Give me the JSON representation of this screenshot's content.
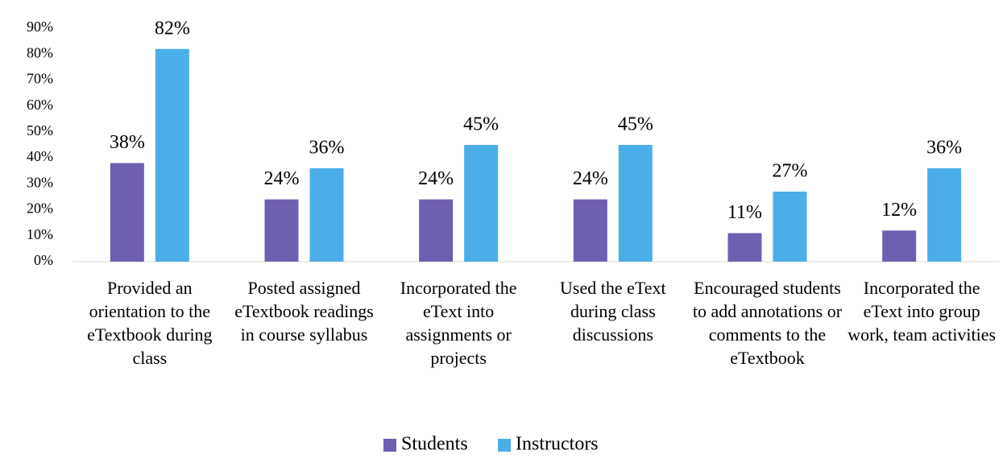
{
  "chart_data": {
    "type": "bar",
    "categories": [
      "Provided an orientation to the eTextbook during class",
      "Posted assigned eTextbook readings in course syllabus",
      "Incorporated the eText into assignments or projects",
      "Used the eText during class discussions",
      "Encouraged students to add annotations or comments to the eTextbook",
      "Incorporated the eText into group work, team activities"
    ],
    "series": [
      {
        "name": "Students",
        "color": "#6f5fb1",
        "values": [
          38,
          24,
          24,
          24,
          11,
          12
        ],
        "value_labels": [
          "38%",
          "24%",
          "24%",
          "24%",
          "11%",
          "12%"
        ]
      },
      {
        "name": "Instructors",
        "color": "#4baee8",
        "values": [
          82,
          36,
          45,
          45,
          27,
          36
        ],
        "value_labels": [
          "82%",
          "36%",
          "45%",
          "45%",
          "27%",
          "36%"
        ]
      }
    ],
    "ylim": [
      0,
      90
    ],
    "yticks": [
      {
        "value": 0,
        "label": "0%"
      },
      {
        "value": 10,
        "label": "10%"
      },
      {
        "value": 20,
        "label": "20%"
      },
      {
        "value": 30,
        "label": "30%"
      },
      {
        "value": 40,
        "label": "40%"
      },
      {
        "value": 50,
        "label": "50%"
      },
      {
        "value": 60,
        "label": "60%"
      },
      {
        "value": 70,
        "label": "70%"
      },
      {
        "value": 80,
        "label": "80%"
      },
      {
        "value": 90,
        "label": "90%"
      }
    ],
    "legend": "bottom"
  }
}
